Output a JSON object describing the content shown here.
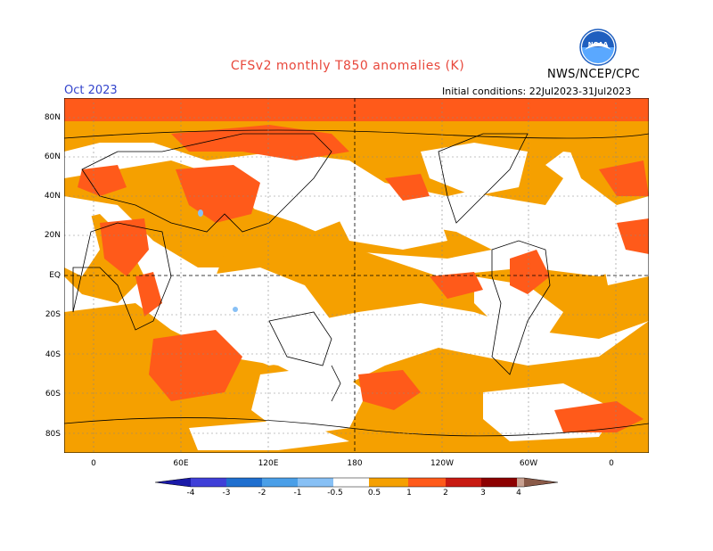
{
  "title": "CFSv2 monthly T850 anomalies (K)",
  "forecast_month": "Oct 2023",
  "organization": "NWS/NCEP/CPC",
  "initial_conditions": "Initial conditions: 22Jul2023-31Jul2023",
  "logo_text": "NOAA",
  "lat_labels": [
    "80N",
    "60N",
    "40N",
    "20N",
    "EQ",
    "20S",
    "40S",
    "60S",
    "80S"
  ],
  "lon_labels": [
    "0",
    "60E",
    "120E",
    "180",
    "120W",
    "60W",
    "0"
  ],
  "colorbar": {
    "labels": [
      "-4",
      "-3",
      "-2",
      "-1",
      "-0.5",
      "0.5",
      "1",
      "2",
      "3",
      "4"
    ],
    "colors": [
      "#1a1aa8",
      "#3f3fd8",
      "#1f6fcf",
      "#4a9fe8",
      "#87c0f5",
      "#ffffff",
      "#f5a000",
      "#ff5a1a",
      "#c81a12",
      "#8c0000",
      "#c8a090",
      "#8a5a48"
    ]
  },
  "colors": {
    "anomaly_05_1": "#f5a000",
    "anomaly_1_2": "#ff5a1a",
    "anomaly_2_3": "#c81a12",
    "anomaly_neg_05_1": "#87c0f5"
  }
}
